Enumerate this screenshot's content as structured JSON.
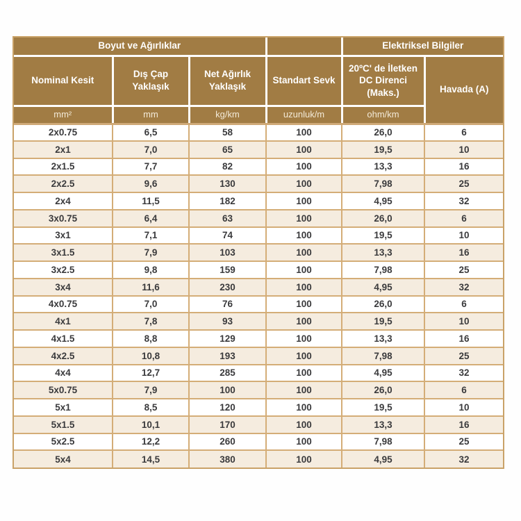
{
  "page": {
    "background_color": "#fefefe",
    "language": "tr"
  },
  "table": {
    "colors": {
      "header_bg": "#a17c44",
      "header_text": "#ffffff",
      "unit_text": "#f3ead8",
      "row_alt_bg": "#f5ecdf",
      "row_bg": "#ffffff",
      "grid_line": "#d4ad77",
      "outer_border": "#c9a268",
      "data_text": "#3a3a3c",
      "header_divider": "#ffffff"
    },
    "group_headers": [
      {
        "label": "Boyut ve Ağırlıklar",
        "span": 3
      },
      {
        "label": "",
        "span": 1
      },
      {
        "label": "Elektriksel Bilgiler",
        "span": 2
      }
    ],
    "columns": [
      {
        "label": "Nominal Kesit",
        "unit": "mm²"
      },
      {
        "label": "Dış Çap Yaklaşık",
        "unit": "mm"
      },
      {
        "label": "Net Ağırlık Yaklaşık",
        "unit": "kg/km"
      },
      {
        "label": "Standart Sevk",
        "unit": "uzunluk/m"
      },
      {
        "label": "20ºC' de İletken DC Direnci (Maks.)",
        "unit": "ohm/km"
      },
      {
        "label": "Havada (A)",
        "unit": ""
      }
    ],
    "rows": [
      [
        "2x0.75",
        "6,5",
        "58",
        "100",
        "26,0",
        "6"
      ],
      [
        "2x1",
        "7,0",
        "65",
        "100",
        "19,5",
        "10"
      ],
      [
        "2x1.5",
        "7,7",
        "82",
        "100",
        "13,3",
        "16"
      ],
      [
        "2x2.5",
        "9,6",
        "130",
        "100",
        "7,98",
        "25"
      ],
      [
        "2x4",
        "11,5",
        "182",
        "100",
        "4,95",
        "32"
      ],
      [
        "3x0.75",
        "6,4",
        "63",
        "100",
        "26,0",
        "6"
      ],
      [
        "3x1",
        "7,1",
        "74",
        "100",
        "19,5",
        "10"
      ],
      [
        "3x1.5",
        "7,9",
        "103",
        "100",
        "13,3",
        "16"
      ],
      [
        "3x2.5",
        "9,8",
        "159",
        "100",
        "7,98",
        "25"
      ],
      [
        "3x4",
        "11,6",
        "230",
        "100",
        "4,95",
        "32"
      ],
      [
        "4x0.75",
        "7,0",
        "76",
        "100",
        "26,0",
        "6"
      ],
      [
        "4x1",
        "7,8",
        "93",
        "100",
        "19,5",
        "10"
      ],
      [
        "4x1.5",
        "8,8",
        "129",
        "100",
        "13,3",
        "16"
      ],
      [
        "4x2.5",
        "10,8",
        "193",
        "100",
        "7,98",
        "25"
      ],
      [
        "4x4",
        "12,7",
        "285",
        "100",
        "4,95",
        "32"
      ],
      [
        "5x0.75",
        "7,9",
        "100",
        "100",
        "26,0",
        "6"
      ],
      [
        "5x1",
        "8,5",
        "120",
        "100",
        "19,5",
        "10"
      ],
      [
        "5x1.5",
        "10,1",
        "170",
        "100",
        "13,3",
        "16"
      ],
      [
        "5x2.5",
        "12,2",
        "260",
        "100",
        "7,98",
        "25"
      ],
      [
        "5x4",
        "14,5",
        "380",
        "100",
        "4,95",
        "32"
      ]
    ]
  }
}
